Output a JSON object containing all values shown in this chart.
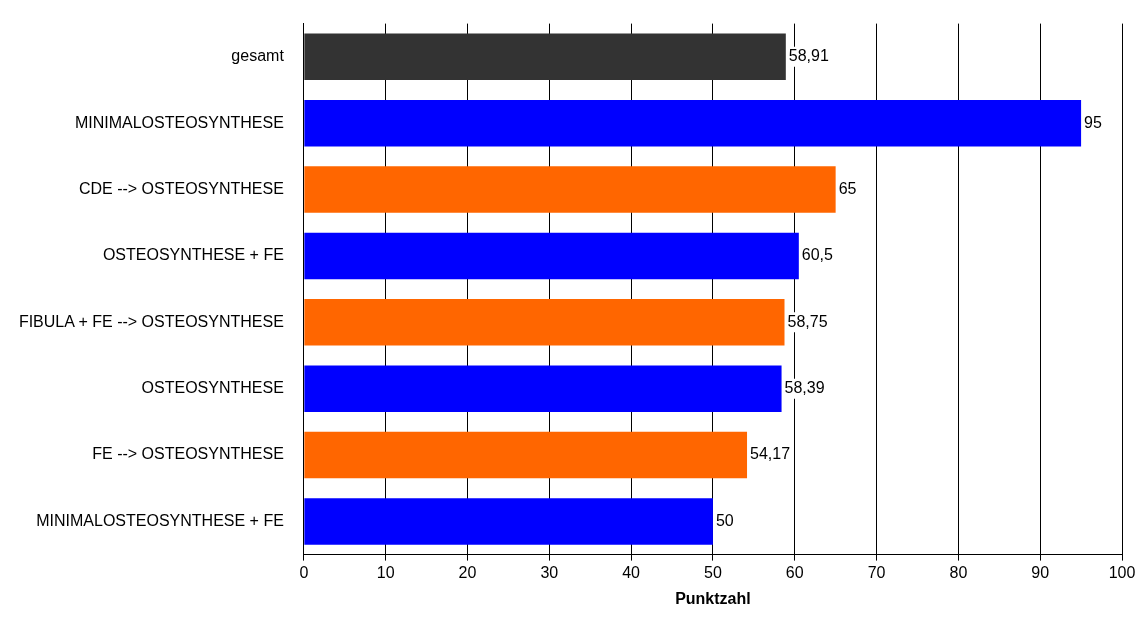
{
  "chart_data": {
    "type": "bar",
    "orientation": "horizontal",
    "xlabel": "Punktzahl",
    "categories": [
      "gesamt",
      "MINIMALOSTEOSYNTHESE",
      "CDE --> OSTEOSYNTHESE",
      "OSTEOSYNTHESE + FE",
      "FIBULA + FE --> OSTEOSYNTHESE",
      "OSTEOSYNTHESE",
      "FE --> OSTEOSYNTHESE",
      "MINIMALOSTEOSYNTHESE + FE"
    ],
    "values": [
      58.91,
      95,
      65,
      60.5,
      58.75,
      58.39,
      54.17,
      50
    ],
    "colors": [
      "#333333",
      "#0000ff",
      "#ff6600",
      "#0000ff",
      "#ff6600",
      "#0000ff",
      "#ff6600",
      "#0000ff"
    ],
    "value_labels": [
      "58,91",
      "95",
      "65",
      "60,5",
      "58,75",
      "58,39",
      "54,17",
      "50"
    ],
    "xlim": [
      0,
      100
    ],
    "xticks": [
      0,
      10,
      20,
      30,
      40,
      50,
      60,
      70,
      80,
      90,
      100
    ],
    "grid": "x",
    "legend": false
  }
}
